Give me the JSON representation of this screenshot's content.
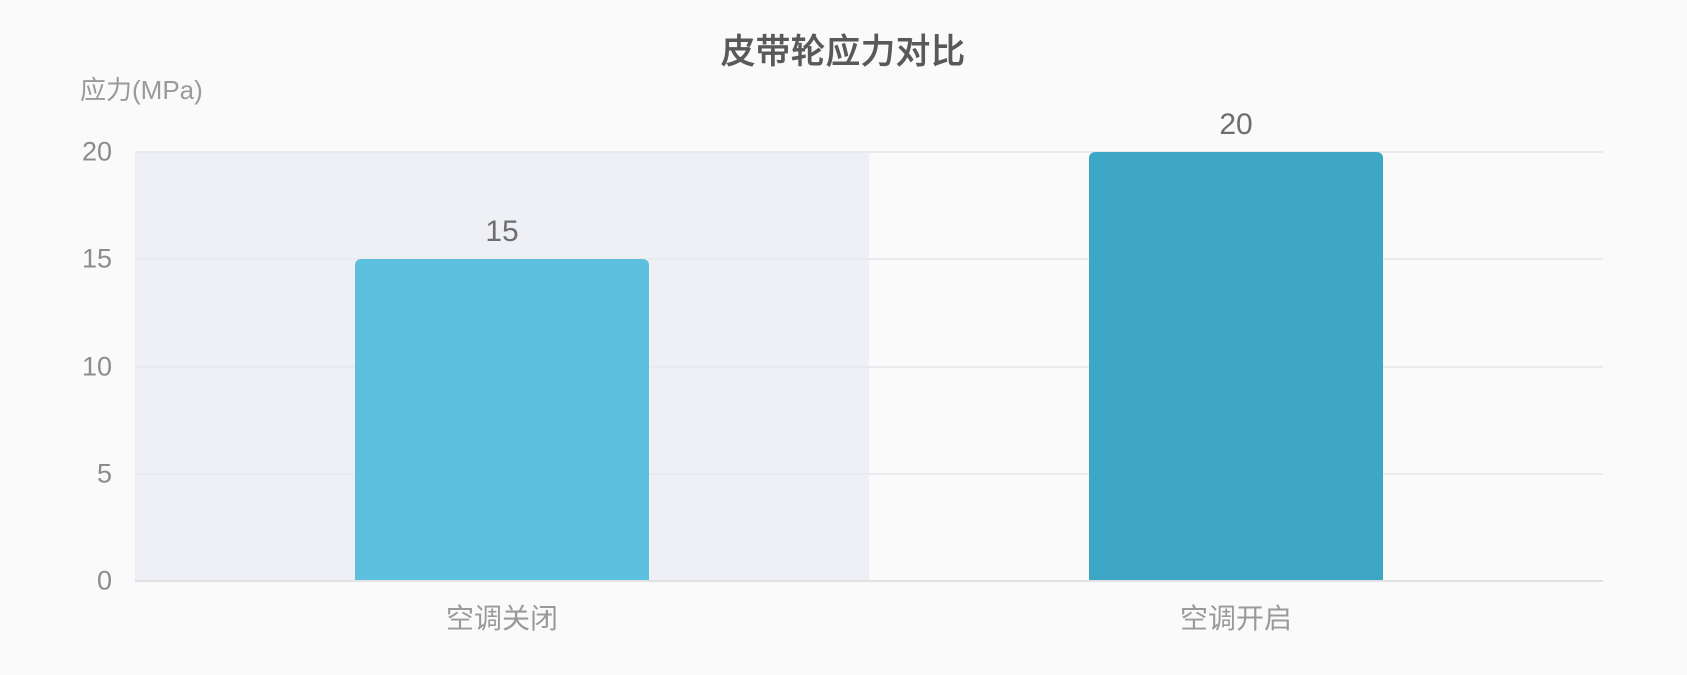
{
  "page": {
    "background_color": "#fafafb"
  },
  "chart_data": {
    "type": "bar",
    "title": "皮带轮应力对比",
    "xlabel": "",
    "ylabel": "应力(MPa)",
    "categories": [
      "空调关闭",
      "空调开启"
    ],
    "values": [
      15,
      20
    ],
    "value_labels": [
      "15",
      "20"
    ],
    "bar_colors": [
      "#5dc0de",
      "#3ea7c5"
    ],
    "ylim": [
      0,
      20
    ],
    "yticks": [
      0,
      5,
      10,
      15,
      20
    ],
    "grid": true,
    "legend": false,
    "highlighted_category_index": 0,
    "highlight_band_color": "#eef0f5"
  }
}
